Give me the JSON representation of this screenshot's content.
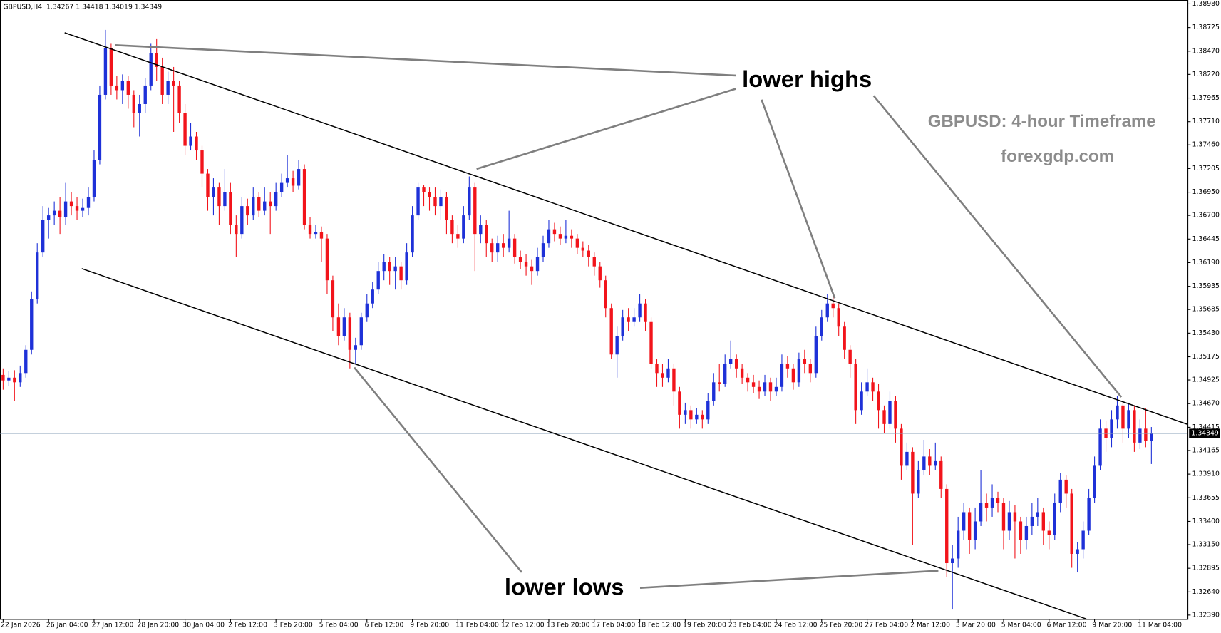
{
  "chart_data": {
    "type": "candlestick",
    "header": "GBPUSD,H4  1.34267 1.34418 1.34019 1.34349",
    "annotations": [
      "lower highs",
      "lower lows",
      "GBPUSD: 4-hour Timeframe",
      "forexgdp.com"
    ],
    "up_color": "#1e31d8",
    "down_color": "#f2141b",
    "price_line": 1.34349,
    "ylim": [
      1.32348,
      1.39022
    ],
    "yticks": [
      {
        "value": 1.3898,
        "label": "1.38980"
      },
      {
        "value": 1.38725,
        "label": "1.38725"
      },
      {
        "value": 1.3847,
        "label": "1.38470"
      },
      {
        "value": 1.3822,
        "label": "1.38220"
      },
      {
        "value": 1.37965,
        "label": "1.37965"
      },
      {
        "value": 1.3771,
        "label": "1.37710"
      },
      {
        "value": 1.3746,
        "label": "1.37460"
      },
      {
        "value": 1.37205,
        "label": "1.37205"
      },
      {
        "value": 1.3695,
        "label": "1.36950"
      },
      {
        "value": 1.367,
        "label": "1.36700"
      },
      {
        "value": 1.36445,
        "label": "1.36445"
      },
      {
        "value": 1.3619,
        "label": "1.36190"
      },
      {
        "value": 1.35935,
        "label": "1.35935"
      },
      {
        "value": 1.35685,
        "label": "1.35685"
      },
      {
        "value": 1.3543,
        "label": "1.35430"
      },
      {
        "value": 1.35175,
        "label": "1.35175"
      },
      {
        "value": 1.34925,
        "label": "1.34925"
      },
      {
        "value": 1.3467,
        "label": "1.34670"
      },
      {
        "value": 1.34415,
        "label": "1.34415"
      },
      {
        "value": 1.34165,
        "label": "1.34165"
      },
      {
        "value": 1.3391,
        "label": "1.33910"
      },
      {
        "value": 1.33655,
        "label": "1.33655"
      },
      {
        "value": 1.334,
        "label": "1.33400"
      },
      {
        "value": 1.3315,
        "label": "1.33150"
      },
      {
        "value": 1.32895,
        "label": "1.32895"
      },
      {
        "value": 1.3264,
        "label": "1.32640"
      },
      {
        "value": 1.3239,
        "label": "1.32390"
      }
    ],
    "categories": [
      "22 Jan 2026",
      null,
      null,
      null,
      null,
      null,
      null,
      null,
      "26 Jan 04:00",
      null,
      null,
      null,
      null,
      null,
      null,
      null,
      "27 Jan 12:00",
      null,
      null,
      null,
      null,
      null,
      null,
      null,
      "28 Jan 20:00",
      null,
      null,
      null,
      null,
      null,
      null,
      null,
      "30 Jan 04:00",
      null,
      null,
      null,
      null,
      null,
      null,
      null,
      "2 Feb 12:00",
      null,
      null,
      null,
      null,
      null,
      null,
      null,
      "3 Feb 20:00",
      null,
      null,
      null,
      null,
      null,
      null,
      null,
      "5 Feb 04:00",
      null,
      null,
      null,
      null,
      null,
      null,
      null,
      "6 Feb 12:00",
      null,
      null,
      null,
      null,
      null,
      null,
      null,
      "9 Feb 20:00",
      null,
      null,
      null,
      null,
      null,
      null,
      null,
      "11 Feb 04:00",
      null,
      null,
      null,
      null,
      null,
      null,
      null,
      "12 Feb 12:00",
      null,
      null,
      null,
      null,
      null,
      null,
      null,
      "13 Feb 20:00",
      null,
      null,
      null,
      null,
      null,
      null,
      null,
      "17 Feb 04:00",
      null,
      null,
      null,
      null,
      null,
      null,
      null,
      "18 Feb 12:00",
      null,
      null,
      null,
      null,
      null,
      null,
      null,
      "19 Feb 20:00",
      null,
      null,
      null,
      null,
      null,
      null,
      null,
      "23 Feb 04:00",
      null,
      null,
      null,
      null,
      null,
      null,
      null,
      "24 Feb 12:00",
      null,
      null,
      null,
      null,
      null,
      null,
      null,
      "25 Feb 20:00",
      null,
      null,
      null,
      null,
      null,
      null,
      null,
      "27 Feb 04:00",
      null,
      null,
      null,
      null,
      null,
      null,
      null,
      "2 Mar 12:00",
      null,
      null,
      null,
      null,
      null,
      null,
      null,
      "3 Mar 20:00",
      null,
      null,
      null,
      null,
      null,
      null,
      null,
      "5 Mar 04:00",
      null,
      null,
      null,
      null,
      null,
      null,
      null,
      "6 Mar 12:00",
      null,
      null,
      null,
      null,
      null,
      null,
      null,
      "9 Mar 20:00",
      null,
      null,
      null,
      null,
      null,
      null,
      null,
      "11 Mar 04:00",
      null,
      null
    ],
    "open": [
      1.3498,
      1.3492,
      1.3495,
      1.349,
      1.35,
      1.3525,
      1.358,
      1.363,
      1.3665,
      1.367,
      1.3675,
      1.3668,
      1.3685,
      1.368,
      1.3675,
      1.3678,
      1.369,
      1.373,
      1.38,
      1.385,
      1.381,
      1.3805,
      1.3815,
      1.38,
      1.378,
      1.379,
      1.381,
      1.3845,
      1.383,
      1.38,
      1.3815,
      1.381,
      1.378,
      1.3745,
      1.3755,
      1.374,
      1.3715,
      1.369,
      1.37,
      1.368,
      1.3695,
      1.366,
      1.365,
      1.368,
      1.367,
      1.369,
      1.3675,
      1.3685,
      1.368,
      1.3695,
      1.3705,
      1.371,
      1.3702,
      1.372,
      1.366,
      1.365,
      1.3652,
      1.3645,
      1.36,
      1.356,
      1.354,
      1.356,
      1.3525,
      1.353,
      1.356,
      1.3575,
      1.359,
      1.361,
      1.362,
      1.361,
      1.3615,
      1.36,
      1.363,
      1.367,
      1.37,
      1.3695,
      1.369,
      1.368,
      1.369,
      1.3665,
      1.365,
      1.3645,
      1.367,
      1.37,
      1.365,
      1.366,
      1.364,
      1.363,
      1.364,
      1.3635,
      1.3645,
      1.3625,
      1.362,
      1.3615,
      1.361,
      1.3625,
      1.364,
      1.3655,
      1.365,
      1.3645,
      1.3648,
      1.3645,
      1.3635,
      1.3632,
      1.3625,
      1.3615,
      1.36,
      1.357,
      1.352,
      1.354,
      1.356,
      1.3555,
      1.356,
      1.3575,
      1.3555,
      1.351,
      1.35,
      1.3495,
      1.3505,
      1.348,
      1.3455,
      1.346,
      1.345,
      1.3455,
      1.345,
      1.347,
      1.349,
      1.3488,
      1.351,
      1.3515,
      1.3505,
      1.3495,
      1.349,
      1.3485,
      1.348,
      1.349,
      1.348,
      1.3485,
      1.351,
      1.3505,
      1.349,
      1.3515,
      1.351,
      1.35,
      1.354,
      1.356,
      1.3575,
      1.357,
      1.355,
      1.3525,
      1.351,
      1.346,
      1.348,
      1.349,
      1.348,
      1.346,
      1.3445,
      1.347,
      1.344,
      1.34,
      1.3415,
      1.337,
      1.3395,
      1.341,
      1.34,
      1.3405,
      1.3375,
      1.3295,
      1.33,
      1.333,
      1.335,
      1.332,
      1.334,
      1.336,
      1.3355,
      1.3365,
      1.336,
      1.333,
      1.335,
      1.334,
      1.332,
      1.3335,
      1.3345,
      1.335,
      1.333,
      1.3325,
      1.336,
      1.3385,
      1.337,
      1.3305,
      1.331,
      1.333,
      1.3365,
      1.34,
      1.344,
      1.343,
      1.345,
      1.3465,
      1.344,
      1.346,
      1.3425,
      1.344,
      1.34267
    ],
    "high": [
      1.3505,
      1.3502,
      1.3503,
      1.3508,
      1.353,
      1.3588,
      1.364,
      1.368,
      1.3678,
      1.3685,
      1.369,
      1.3705,
      1.3695,
      1.369,
      1.3688,
      1.37,
      1.374,
      1.381,
      1.387,
      1.3855,
      1.382,
      1.3822,
      1.382,
      1.3805,
      1.38,
      1.3818,
      1.3855,
      1.386,
      1.384,
      1.3825,
      1.383,
      1.3815,
      1.379,
      1.377,
      1.376,
      1.3745,
      1.372,
      1.371,
      1.3705,
      1.372,
      1.3705,
      1.367,
      1.369,
      1.3688,
      1.37,
      1.3695,
      1.37,
      1.3695,
      1.3705,
      1.3715,
      1.3735,
      1.3718,
      1.373,
      1.3725,
      1.3668,
      1.366,
      1.3658,
      1.365,
      1.3605,
      1.3575,
      1.357,
      1.3565,
      1.3538,
      1.3565,
      1.3585,
      1.3598,
      1.362,
      1.3628,
      1.3625,
      1.3625,
      1.362,
      1.364,
      1.368,
      1.3705,
      1.3703,
      1.37,
      1.37,
      1.3698,
      1.3695,
      1.367,
      1.366,
      1.368,
      1.3712,
      1.3705,
      1.367,
      1.3665,
      1.3645,
      1.3648,
      1.365,
      1.3675,
      1.365,
      1.3632,
      1.3628,
      1.3622,
      1.3635,
      1.3648,
      1.3665,
      1.3662,
      1.3658,
      1.3665,
      1.3655,
      1.365,
      1.3642,
      1.3638,
      1.363,
      1.362,
      1.3605,
      1.3575,
      1.355,
      1.3568,
      1.357,
      1.357,
      1.3585,
      1.358,
      1.356,
      1.3515,
      1.351,
      1.3515,
      1.351,
      1.3485,
      1.3468,
      1.3465,
      1.3462,
      1.346,
      1.3478,
      1.35,
      1.351,
      1.352,
      1.3535,
      1.352,
      1.351,
      1.35,
      1.3498,
      1.3492,
      1.3498,
      1.3495,
      1.3495,
      1.352,
      1.3518,
      1.351,
      1.3522,
      1.3525,
      1.3515,
      1.355,
      1.3568,
      1.3585,
      1.3582,
      1.3575,
      1.3555,
      1.353,
      1.3515,
      1.349,
      1.3505,
      1.3495,
      1.3488,
      1.3465,
      1.348,
      1.3475,
      1.3445,
      1.3425,
      1.342,
      1.3405,
      1.3428,
      1.3418,
      1.3425,
      1.341,
      1.338,
      1.3315,
      1.3345,
      1.336,
      1.3355,
      1.3355,
      1.3395,
      1.337,
      1.338,
      1.3372,
      1.3365,
      1.3362,
      1.3358,
      1.3345,
      1.3345,
      1.336,
      1.3365,
      1.3355,
      1.334,
      1.337,
      1.3392,
      1.339,
      1.3375,
      1.3318,
      1.334,
      1.3375,
      1.341,
      1.345,
      1.3448,
      1.346,
      1.3475,
      1.347,
      1.3468,
      1.3465,
      1.345,
      1.3462,
      1.34418
    ],
    "low": [
      1.3482,
      1.3486,
      1.347,
      1.3485,
      1.3495,
      1.352,
      1.3575,
      1.3625,
      1.3645,
      1.366,
      1.365,
      1.366,
      1.367,
      1.3665,
      1.3668,
      1.367,
      1.3685,
      1.3725,
      1.3795,
      1.38,
      1.3795,
      1.379,
      1.3785,
      1.3765,
      1.3755,
      1.378,
      1.3805,
      1.3815,
      1.379,
      1.379,
      1.376,
      1.377,
      1.3735,
      1.374,
      1.373,
      1.37,
      1.3675,
      1.367,
      1.366,
      1.3675,
      1.365,
      1.3625,
      1.3645,
      1.366,
      1.3665,
      1.3668,
      1.367,
      1.365,
      1.3675,
      1.369,
      1.37,
      1.3695,
      1.3698,
      1.3655,
      1.3645,
      1.3645,
      1.362,
      1.3585,
      1.3545,
      1.353,
      1.3535,
      1.3505,
      1.351,
      1.3525,
      1.3555,
      1.357,
      1.3585,
      1.36,
      1.3595,
      1.359,
      1.359,
      1.3595,
      1.3625,
      1.3665,
      1.368,
      1.3675,
      1.367,
      1.3665,
      1.365,
      1.364,
      1.3635,
      1.364,
      1.3665,
      1.361,
      1.364,
      1.3625,
      1.362,
      1.362,
      1.3625,
      1.363,
      1.3618,
      1.3612,
      1.3605,
      1.3595,
      1.3605,
      1.362,
      1.3635,
      1.3642,
      1.3638,
      1.364,
      1.3635,
      1.3628,
      1.3625,
      1.3615,
      1.3605,
      1.3592,
      1.356,
      1.3515,
      1.3495,
      1.3535,
      1.3545,
      1.355,
      1.3555,
      1.3545,
      1.3505,
      1.3485,
      1.3485,
      1.349,
      1.3465,
      1.344,
      1.3445,
      1.344,
      1.3445,
      1.344,
      1.3445,
      1.3465,
      1.348,
      1.3485,
      1.3505,
      1.3495,
      1.3488,
      1.348,
      1.3478,
      1.3472,
      1.3475,
      1.347,
      1.3475,
      1.348,
      1.3495,
      1.3482,
      1.3485,
      1.35,
      1.349,
      1.3495,
      1.3535,
      1.3555,
      1.356,
      1.354,
      1.3515,
      1.3495,
      1.3445,
      1.3455,
      1.3475,
      1.347,
      1.344,
      1.3435,
      1.344,
      1.3425,
      1.3385,
      1.3395,
      1.3315,
      1.3365,
      1.339,
      1.339,
      1.3395,
      1.3365,
      1.328,
      1.3245,
      1.329,
      1.332,
      1.3305,
      1.331,
      1.3335,
      1.334,
      1.3345,
      1.335,
      1.331,
      1.332,
      1.33,
      1.3305,
      1.331,
      1.3325,
      1.3335,
      1.3315,
      1.331,
      1.332,
      1.335,
      1.3355,
      1.329,
      1.3285,
      1.33,
      1.3325,
      1.336,
      1.3395,
      1.3415,
      1.342,
      1.344,
      1.3425,
      1.343,
      1.3415,
      1.3418,
      1.342,
      1.34019
    ],
    "close": [
      1.3492,
      1.3495,
      1.349,
      1.35,
      1.3525,
      1.358,
      1.363,
      1.3665,
      1.367,
      1.3675,
      1.3668,
      1.3685,
      1.368,
      1.3675,
      1.3678,
      1.369,
      1.373,
      1.38,
      1.385,
      1.381,
      1.3805,
      1.3815,
      1.38,
      1.378,
      1.379,
      1.381,
      1.3845,
      1.383,
      1.38,
      1.3815,
      1.381,
      1.378,
      1.3745,
      1.3755,
      1.374,
      1.3715,
      1.369,
      1.37,
      1.368,
      1.3695,
      1.366,
      1.365,
      1.368,
      1.367,
      1.369,
      1.3675,
      1.3685,
      1.368,
      1.3695,
      1.3705,
      1.371,
      1.3702,
      1.372,
      1.366,
      1.365,
      1.3652,
      1.3645,
      1.36,
      1.356,
      1.354,
      1.356,
      1.3525,
      1.353,
      1.356,
      1.3575,
      1.359,
      1.361,
      1.362,
      1.361,
      1.3615,
      1.36,
      1.363,
      1.367,
      1.37,
      1.3695,
      1.369,
      1.368,
      1.369,
      1.3665,
      1.365,
      1.3645,
      1.367,
      1.37,
      1.365,
      1.366,
      1.364,
      1.363,
      1.364,
      1.3635,
      1.3645,
      1.3625,
      1.362,
      1.3615,
      1.361,
      1.3625,
      1.364,
      1.3655,
      1.365,
      1.3645,
      1.3648,
      1.3645,
      1.3635,
      1.3632,
      1.3625,
      1.3615,
      1.36,
      1.357,
      1.352,
      1.354,
      1.356,
      1.3555,
      1.356,
      1.3575,
      1.3555,
      1.351,
      1.35,
      1.3495,
      1.3505,
      1.348,
      1.3455,
      1.346,
      1.345,
      1.3455,
      1.345,
      1.347,
      1.349,
      1.3488,
      1.351,
      1.3515,
      1.3505,
      1.3495,
      1.349,
      1.3485,
      1.348,
      1.349,
      1.348,
      1.3485,
      1.351,
      1.3505,
      1.349,
      1.3515,
      1.351,
      1.35,
      1.354,
      1.356,
      1.3575,
      1.357,
      1.355,
      1.3525,
      1.351,
      1.346,
      1.348,
      1.349,
      1.348,
      1.346,
      1.3445,
      1.347,
      1.344,
      1.34,
      1.3415,
      1.337,
      1.3395,
      1.341,
      1.34,
      1.3405,
      1.3375,
      1.3295,
      1.33,
      1.333,
      1.335,
      1.332,
      1.334,
      1.336,
      1.3355,
      1.3365,
      1.336,
      1.333,
      1.335,
      1.334,
      1.332,
      1.3335,
      1.3345,
      1.335,
      1.333,
      1.3325,
      1.336,
      1.3385,
      1.337,
      1.3305,
      1.331,
      1.333,
      1.3365,
      1.34,
      1.344,
      1.343,
      1.345,
      1.3465,
      1.344,
      1.346,
      1.3425,
      1.344,
      1.34267,
      1.34349
    ]
  }
}
